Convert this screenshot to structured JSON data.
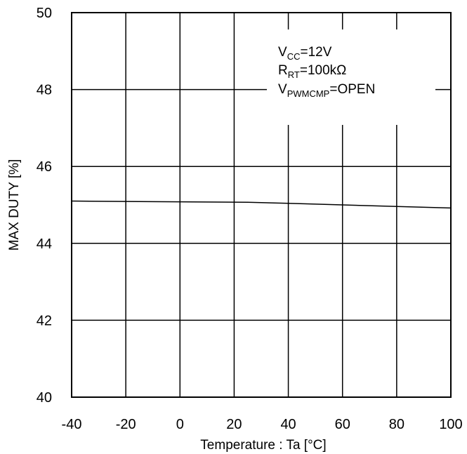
{
  "chart_data": {
    "type": "line",
    "xlabel": "Temperature : Ta [°C]",
    "ylabel": "MAX DUTY [%]",
    "xlim": [
      -40,
      100
    ],
    "ylim": [
      40,
      50
    ],
    "x_ticks": [
      -40,
      -20,
      0,
      20,
      40,
      60,
      80,
      100
    ],
    "y_ticks": [
      40,
      42,
      44,
      46,
      48,
      50
    ],
    "grid": true,
    "series": [
      {
        "x": [
          -40,
          -20,
          0,
          25,
          40,
          60,
          80,
          100
        ],
        "y": [
          45.1,
          45.09,
          45.08,
          45.07,
          45.04,
          45.0,
          44.96,
          44.92
        ],
        "color": "#000000"
      }
    ],
    "annotation": {
      "lines": [
        {
          "main": "V",
          "sub": "CC",
          "rest": "=12V"
        },
        {
          "main": "R",
          "sub": "RT",
          "rest": "=100kΩ"
        },
        {
          "main": "V",
          "sub": "PWMCMP",
          "rest": "=OPEN"
        }
      ]
    }
  }
}
